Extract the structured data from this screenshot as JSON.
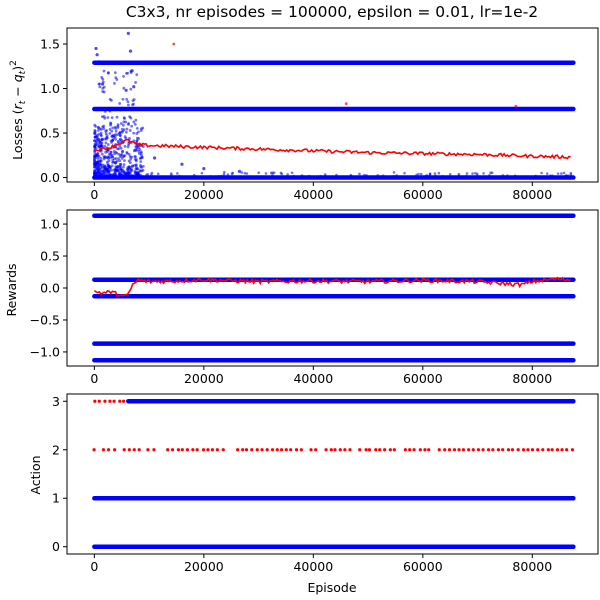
{
  "chart_data": [
    {
      "type": "scatter",
      "title": "C3x3, nr episodes = 100000, epsilon = 0.01, lr=1e-2",
      "xlabel": "",
      "ylabel": "Losses (r_t − q_t)²",
      "ylabel_parts": {
        "main": "Losses ",
        "open": "(",
        "r": "r",
        "r_sub": "t",
        "minus": " − ",
        "q": "q",
        "q_sub": "t",
        "close": ")",
        "sup": "2"
      },
      "xlim": [
        -5000,
        92000
      ],
      "ylim": [
        -0.05,
        1.68
      ],
      "xticks": [
        0,
        20000,
        40000,
        60000,
        80000
      ],
      "xtick_labels": [
        "0",
        "20000",
        "40000",
        "60000",
        "80000"
      ],
      "yticks": [
        0.0,
        0.5,
        1.0,
        1.5
      ],
      "ytick_labels": [
        "0.0",
        "0.5",
        "1.0",
        "1.5"
      ],
      "grid": false,
      "series": [
        {
          "color": "#0000ff",
          "bands": [
            0.0,
            0.77,
            1.29
          ],
          "x_max": 87500,
          "early_scatter": {
            "x_range": [
              0,
              9000
            ],
            "y_range": [
              0.0,
              0.6
            ]
          },
          "outliers": [
            [
              300,
              1.45
            ],
            [
              500,
              1.38
            ],
            [
              800,
              1.3
            ],
            [
              1500,
              1.05
            ],
            [
              6200,
              1.62
            ],
            [
              6600,
              1.42
            ],
            [
              6900,
              1.2
            ],
            [
              7200,
              1.02
            ],
            [
              5800,
              0.98
            ],
            [
              11000,
              0.22
            ],
            [
              16000,
              0.15
            ],
            [
              20000,
              0.1
            ],
            [
              26500,
              0.07
            ]
          ]
        },
        {
          "color": "#ff0000",
          "line": [
            [
              0,
              0.31
            ],
            [
              3000,
              0.34
            ],
            [
              6000,
              0.42
            ],
            [
              8000,
              0.37
            ],
            [
              10000,
              0.36
            ],
            [
              20000,
              0.34
            ],
            [
              30000,
              0.32
            ],
            [
              40000,
              0.3
            ],
            [
              50000,
              0.28
            ],
            [
              60000,
              0.27
            ],
            [
              70000,
              0.26
            ],
            [
              80000,
              0.24
            ],
            [
              87000,
              0.23
            ]
          ],
          "outliers": [
            [
              14500,
              1.5
            ],
            [
              46000,
              0.83
            ],
            [
              77000,
              0.8
            ]
          ]
        }
      ]
    },
    {
      "type": "scatter",
      "title": "",
      "xlabel": "",
      "ylabel": "Rewards",
      "xlim": [
        -5000,
        92000
      ],
      "ylim": [
        -1.22,
        1.22
      ],
      "xticks": [
        0,
        20000,
        40000,
        60000,
        80000
      ],
      "xtick_labels": [
        "0",
        "20000",
        "40000",
        "60000",
        "80000"
      ],
      "yticks": [
        -1.0,
        -0.5,
        0.0,
        0.5,
        1.0
      ],
      "ytick_labels": [
        "−1.0",
        "−0.5",
        "0.0",
        "0.5",
        "1.0"
      ],
      "grid": false,
      "series": [
        {
          "color": "#0000ff",
          "bands": [
            1.13,
            0.13,
            -0.13,
            -0.87,
            -1.13
          ],
          "x_max": 87500
        },
        {
          "color": "#ff0000",
          "line": [
            [
              0,
              -0.05
            ],
            [
              1500,
              -0.08
            ],
            [
              3000,
              -0.06
            ],
            [
              5000,
              -0.12
            ],
            [
              6000,
              -0.13
            ],
            [
              7000,
              0.05
            ],
            [
              8000,
              0.12
            ],
            [
              10000,
              0.1
            ],
            [
              15000,
              0.11
            ],
            [
              20000,
              0.13
            ],
            [
              30000,
              0.1
            ],
            [
              40000,
              0.11
            ],
            [
              50000,
              0.1
            ],
            [
              60000,
              0.12
            ],
            [
              70000,
              0.1
            ],
            [
              78000,
              0.05
            ],
            [
              80000,
              0.1
            ],
            [
              84000,
              0.14
            ],
            [
              87000,
              0.13
            ]
          ]
        }
      ]
    },
    {
      "type": "scatter",
      "title": "",
      "xlabel": "Episode",
      "ylabel": "Action",
      "xlim": [
        -5000,
        92000
      ],
      "ylim": [
        -0.15,
        3.15
      ],
      "xticks": [
        0,
        20000,
        40000,
        60000,
        80000
      ],
      "xtick_labels": [
        "0",
        "20000",
        "40000",
        "60000",
        "80000"
      ],
      "yticks": [
        0,
        1,
        2,
        3
      ],
      "ytick_labels": [
        "0",
        "1",
        "2",
        "3"
      ],
      "grid": false,
      "series": [
        {
          "color": "#0000ff",
          "bands": [
            [
              0,
              0,
              87500
            ],
            [
              1,
              0,
              87500
            ],
            [
              3,
              6200,
              87500
            ]
          ]
        },
        {
          "color": "#ff0000",
          "dots": [
            [
              2,
              0,
              87500
            ],
            [
              3,
              0,
              6000
            ]
          ]
        }
      ]
    }
  ]
}
